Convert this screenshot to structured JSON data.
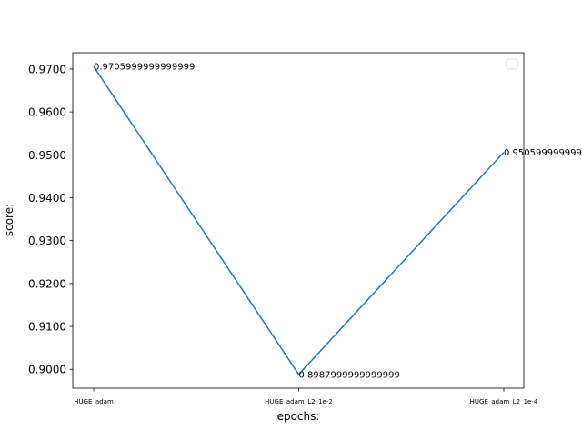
{
  "chart_data": {
    "type": "line",
    "categories": [
      "HUGE_adam",
      "HUGE_adam_L2_1e-2",
      "HUGE_adam_L2_1e-4"
    ],
    "series": [
      {
        "values": [
          0.9705999999999999,
          0.8987999999999999,
          0.9505999999999999
        ],
        "color": "#1f77b4"
      }
    ],
    "data_labels": [
      "0.9705999999999999",
      "0.8987999999999999",
      "0.9505999999999999"
    ],
    "xlabel": "epochs:",
    "ylabel": "score:",
    "ylim": [
      0.8956,
      0.9738
    ],
    "yticks": [
      0.9,
      0.91,
      0.92,
      0.93,
      0.94,
      0.95,
      0.96,
      0.97
    ],
    "ytick_labels": [
      "0.9000",
      "0.9100",
      "0.9200",
      "0.9300",
      "0.9400",
      "0.9500",
      "0.9600",
      "0.9700"
    ],
    "grid": false,
    "legend": {
      "placement": "upper right",
      "entries": []
    }
  }
}
